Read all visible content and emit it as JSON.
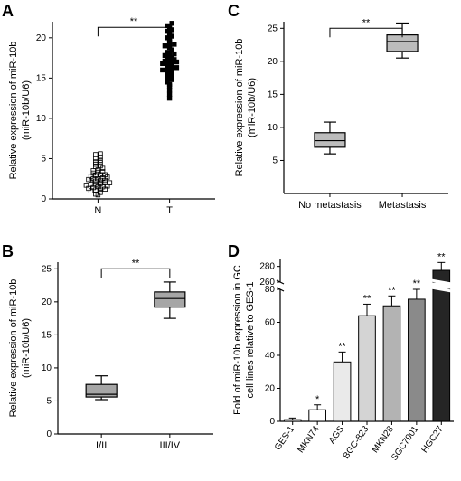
{
  "labels": {
    "A": "A",
    "B": "B",
    "C": "C",
    "D": "D"
  },
  "A": {
    "type": "scatter",
    "ylabel_line1": "Relative expression of miR-10b",
    "ylabel_line2": "(miR-10b/U6)",
    "categories": [
      "N",
      "T"
    ],
    "ylim": [
      0,
      22
    ],
    "yticks": [
      0,
      5,
      10,
      15,
      20
    ],
    "sig": "**",
    "groups": {
      "N": {
        "marker": "open-square",
        "color": "#bfbfbf",
        "points": [
          0.5,
          0.6,
          0.8,
          1.0,
          1.1,
          1.2,
          1.2,
          1.3,
          1.4,
          1.5,
          1.5,
          1.6,
          1.7,
          1.8,
          1.8,
          1.9,
          2.0,
          2.0,
          2.1,
          2.2,
          2.3,
          2.3,
          2.4,
          2.5,
          2.5,
          2.6,
          2.7,
          2.8,
          2.9,
          3.0,
          3.0,
          3.2,
          3.3,
          3.4,
          3.5,
          3.6,
          3.8,
          4.0,
          4.1,
          4.3,
          4.5,
          4.6,
          4.8,
          5.0,
          5.2,
          5.5,
          5.6
        ]
      },
      "T": {
        "marker": "filled-square",
        "color": "#000000",
        "points": [
          12.5,
          13.0,
          13.5,
          14.0,
          14.2,
          14.5,
          14.8,
          15.0,
          15.2,
          15.5,
          15.5,
          15.8,
          16.0,
          16.0,
          16.2,
          16.5,
          16.5,
          16.8,
          17.0,
          17.0,
          17.2,
          17.5,
          17.5,
          17.8,
          18.0,
          18.0,
          18.2,
          18.5,
          18.8,
          19.0,
          19.0,
          19.2,
          19.5,
          19.8,
          20.0,
          20.2,
          20.5,
          20.8,
          21.0,
          21.2,
          21.5,
          21.8,
          17.3,
          16.8,
          15.9,
          16.3,
          17.1
        ]
      }
    }
  },
  "B": {
    "type": "boxplot",
    "ylabel_line1": "Relative expression of miR-10b",
    "ylabel_line2": "(miR-10b/U6)",
    "categories": [
      "I/II",
      "III/IV"
    ],
    "ylim": [
      0,
      26
    ],
    "yticks": [
      0,
      5,
      10,
      15,
      20,
      25
    ],
    "sig": "**",
    "boxes": {
      "I/II": {
        "min": 5.2,
        "q1": 5.6,
        "median": 6.0,
        "q3": 7.5,
        "max": 8.8,
        "fill": "#a6a6a6"
      },
      "III/IV": {
        "min": 17.5,
        "q1": 19.2,
        "median": 20.5,
        "q3": 21.5,
        "max": 23.0,
        "fill": "#a6a6a6"
      }
    }
  },
  "C": {
    "type": "boxplot",
    "ylabel_line1": "Relative expression of miR-10b",
    "ylabel_line2": "(miR-10b/U6)",
    "categories": [
      "No metastasis",
      "Metastasis"
    ],
    "ylim": [
      0,
      26
    ],
    "yticks": [
      5,
      10,
      15,
      20,
      25
    ],
    "sig": "**",
    "boxes": {
      "No metastasis": {
        "min": 6.0,
        "q1": 7.0,
        "median": 8.0,
        "q3": 9.2,
        "max": 10.8,
        "fill": "#bcbcbc"
      },
      "Metastasis": {
        "min": 20.5,
        "q1": 21.5,
        "median": 23.0,
        "q3": 24.0,
        "max": 25.8,
        "fill": "#bcbcbc"
      }
    }
  },
  "D": {
    "type": "bar-broken",
    "ylabel_line1": "Fold of miR-10b expression in GC",
    "ylabel_line2": "cell lines  relative to GES-1",
    "categories": [
      "GES-1",
      "MKN74",
      "AGS",
      "BGC-823",
      "MKN28",
      "SGC7901",
      "HGC27"
    ],
    "lower_ylim": [
      0,
      80
    ],
    "lower_yticks": [
      0,
      20,
      40,
      60,
      80
    ],
    "upper_ylim": [
      260,
      290
    ],
    "upper_yticks": [
      260,
      280
    ],
    "values": [
      1,
      7,
      36,
      64,
      70,
      74,
      275
    ],
    "errs": [
      1,
      3,
      6,
      7,
      6,
      6,
      10
    ],
    "sigs": [
      "",
      "*",
      "**",
      "**",
      "**",
      "**",
      "**"
    ],
    "fills": [
      "#f7f7f7",
      "#ffffff",
      "#eaeaea",
      "#d4d4d4",
      "#b3b3b3",
      "#8a8a8a",
      "#252525"
    ]
  }
}
